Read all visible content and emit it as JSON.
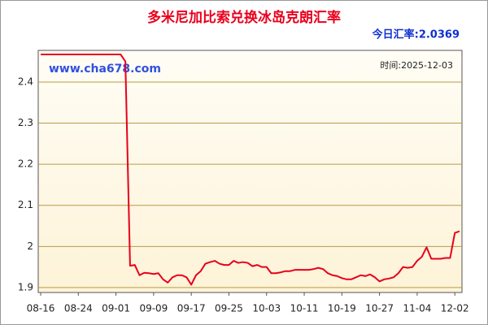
{
  "chart_data": {
    "type": "line",
    "title": "多米尼加比索兑换冰岛克朗汇率",
    "rate_label": "今日汇率:2.0369",
    "watermark": "www.cha678.com",
    "time_label": "时间:2025-12-03",
    "categories": [
      "08-16",
      null,
      null,
      null,
      null,
      null,
      null,
      null,
      "08-24",
      null,
      null,
      null,
      null,
      null,
      null,
      null,
      "09-01",
      null,
      null,
      null,
      null,
      null,
      null,
      null,
      "09-09",
      null,
      null,
      null,
      null,
      null,
      null,
      null,
      "09-17",
      null,
      null,
      null,
      null,
      null,
      null,
      null,
      "09-25",
      null,
      null,
      null,
      null,
      null,
      null,
      null,
      "10-03",
      null,
      null,
      null,
      null,
      null,
      null,
      null,
      "10-11",
      null,
      null,
      null,
      null,
      null,
      null,
      null,
      "10-19",
      null,
      null,
      null,
      null,
      null,
      null,
      null,
      "10-27",
      null,
      null,
      null,
      null,
      null,
      null,
      null,
      "11-04",
      null,
      null,
      null,
      null,
      null,
      null,
      null,
      "12-02",
      null
    ],
    "series": [
      {
        "color": "#e8001c",
        "values": [
          2.467,
          2.467,
          2.467,
          2.467,
          2.467,
          2.467,
          2.467,
          2.467,
          2.467,
          2.467,
          2.467,
          2.467,
          2.467,
          2.467,
          2.467,
          2.467,
          2.467,
          2.467,
          2.45,
          1.953,
          1.955,
          1.93,
          1.936,
          1.935,
          1.933,
          1.935,
          1.92,
          1.912,
          1.925,
          1.93,
          1.93,
          1.925,
          1.907,
          1.93,
          1.94,
          1.958,
          1.962,
          1.965,
          1.958,
          1.955,
          1.955,
          1.965,
          1.96,
          1.962,
          1.96,
          1.952,
          1.955,
          1.95,
          1.95,
          1.935,
          1.935,
          1.937,
          1.94,
          1.94,
          1.943,
          1.943,
          1.943,
          1.943,
          1.945,
          1.948,
          1.945,
          1.935,
          1.93,
          1.928,
          1.923,
          1.92,
          1.92,
          1.925,
          1.93,
          1.928,
          1.932,
          1.925,
          1.915,
          1.92,
          1.922,
          1.925,
          1.935,
          1.95,
          1.948,
          1.95,
          1.965,
          1.975,
          1.998,
          1.97,
          1.97,
          1.97,
          1.972,
          1.972,
          2.033,
          2.037
        ]
      }
    ],
    "ylim": [
      1.888,
      2.477
    ],
    "yticks": [
      1.9,
      2.0,
      2.1,
      2.2,
      2.3,
      2.4
    ],
    "grid": true
  }
}
